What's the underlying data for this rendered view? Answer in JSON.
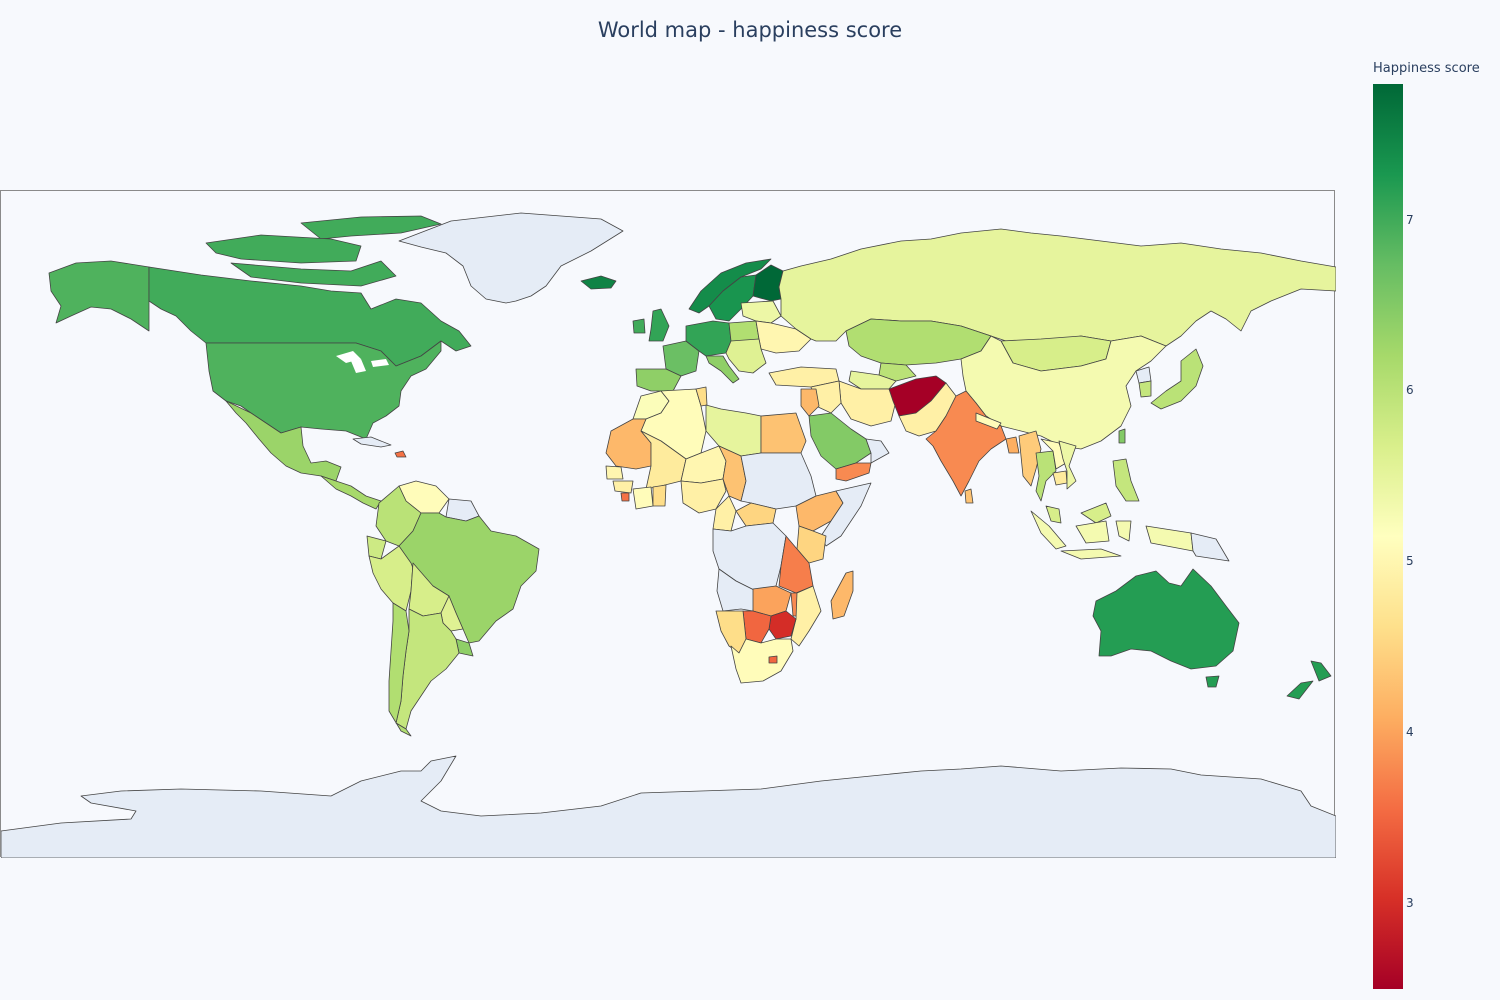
{
  "title": "World map - happiness score",
  "colorbar": {
    "title": "Happiness score",
    "range": [
      2.5,
      7.8
    ],
    "ticks": [
      "3",
      "4",
      "5",
      "6",
      "7"
    ],
    "colorscale": [
      "#a50026",
      "#d73027",
      "#f46d43",
      "#fdae61",
      "#fee08b",
      "#ffffbf",
      "#d9ef8b",
      "#a6d96a",
      "#66bd63",
      "#1a9850",
      "#006837"
    ]
  },
  "colors": {
    "no_data": "#e5ecf6",
    "land_stroke": "#444444",
    "frame_stroke": "#8a8a8a",
    "background": "#f7f9fd"
  },
  "regions": [
    {
      "name": "Greenland",
      "value": null
    },
    {
      "name": "Antarctica",
      "value": null
    },
    {
      "name": "Canada",
      "value": 7.0
    },
    {
      "name": "Alaska (United States)",
      "value": 6.9
    },
    {
      "name": "United States",
      "value": 6.9
    },
    {
      "name": "Mexico",
      "value": 6.3
    },
    {
      "name": "Central America",
      "value": 6.2
    },
    {
      "name": "Cuba",
      "value": null
    },
    {
      "name": "Haiti",
      "value": 3.6
    },
    {
      "name": "Venezuela",
      "value": 5.1
    },
    {
      "name": "Colombia",
      "value": 6.0
    },
    {
      "name": "Ecuador",
      "value": 5.8
    },
    {
      "name": "Peru",
      "value": 5.7
    },
    {
      "name": "Bolivia",
      "value": 5.7
    },
    {
      "name": "Brazil",
      "value": 6.3
    },
    {
      "name": "Guianas",
      "value": null
    },
    {
      "name": "Paraguay",
      "value": 5.6
    },
    {
      "name": "Argentina",
      "value": 5.9
    },
    {
      "name": "Chile",
      "value": 6.1
    },
    {
      "name": "Uruguay",
      "value": 6.4
    },
    {
      "name": "Iceland",
      "value": 7.5
    },
    {
      "name": "Norway",
      "value": 7.4
    },
    {
      "name": "Sweden",
      "value": 7.3
    },
    {
      "name": "Finland",
      "value": 7.8
    },
    {
      "name": "United Kingdom",
      "value": 7.1
    },
    {
      "name": "Ireland",
      "value": 7.0
    },
    {
      "name": "Iberia",
      "value": 6.4
    },
    {
      "name": "France",
      "value": 6.7
    },
    {
      "name": "Central Europe",
      "value": 7.1
    },
    {
      "name": "Italy",
      "value": 6.4
    },
    {
      "name": "Poland",
      "value": 6.1
    },
    {
      "name": "Eastern Europe",
      "value": 5.4
    },
    {
      "name": "Balkans",
      "value": 5.6
    },
    {
      "name": "Ukraine",
      "value": 5.0
    },
    {
      "name": "Turkey",
      "value": 4.9
    },
    {
      "name": "Russia",
      "value": 5.5
    },
    {
      "name": "Kazakhstan",
      "value": 6.1
    },
    {
      "name": "Uzbekistan",
      "value": 6.0
    },
    {
      "name": "Turkmenistan",
      "value": 5.5
    },
    {
      "name": "Mongolia",
      "value": 5.7
    },
    {
      "name": "China",
      "value": 5.3
    },
    {
      "name": "Iran",
      "value": 4.9
    },
    {
      "name": "Iraq",
      "value": 4.9
    },
    {
      "name": "Afghanistan",
      "value": 2.5
    },
    {
      "name": "Pakistan",
      "value": 4.9
    },
    {
      "name": "India",
      "value": 3.8
    },
    {
      "name": "Nepal",
      "value": 5.1
    },
    {
      "name": "Bangladesh",
      "value": 4.1
    },
    {
      "name": "Myanmar",
      "value": 4.4
    },
    {
      "name": "Thailand",
      "value": 6.0
    },
    {
      "name": "Laos",
      "value": 5.1
    },
    {
      "name": "Vietnam",
      "value": 5.4
    },
    {
      "name": "Cambodia",
      "value": 4.8
    },
    {
      "name": "Sri Lanka",
      "value": 4.3
    },
    {
      "name": "Japan",
      "value": 6.0
    },
    {
      "name": "South Korea",
      "value": 5.9
    },
    {
      "name": "North Korea",
      "value": null
    },
    {
      "name": "Taiwan",
      "value": 6.5
    },
    {
      "name": "Philippines",
      "value": 5.9
    },
    {
      "name": "Malaysia",
      "value": 5.7
    },
    {
      "name": "Indonesia",
      "value": 5.3
    },
    {
      "name": "Papua New Guinea",
      "value": null
    },
    {
      "name": "Australia",
      "value": 7.2
    },
    {
      "name": "New Zealand",
      "value": 7.2
    },
    {
      "name": "Saudi Arabia",
      "value": 6.5
    },
    {
      "name": "Yemen",
      "value": 3.8
    },
    {
      "name": "Oman",
      "value": null
    },
    {
      "name": "Syria & Jordan",
      "value": 4.2
    },
    {
      "name": "Egypt",
      "value": 4.3
    },
    {
      "name": "Libya",
      "value": 5.5
    },
    {
      "name": "Algeria",
      "value": 5.1
    },
    {
      "name": "Tunisia",
      "value": 4.6
    },
    {
      "name": "Morocco",
      "value": 5.2
    },
    {
      "name": "Western Sahara & Mauritania",
      "value": 4.2
    },
    {
      "name": "Mali",
      "value": 4.8
    },
    {
      "name": "Niger",
      "value": 5.0
    },
    {
      "name": "Chad",
      "value": 4.3
    },
    {
      "name": "Sudan",
      "value": null
    },
    {
      "name": "Ethiopia",
      "value": 4.2
    },
    {
      "name": "Somalia",
      "value": null
    },
    {
      "name": "Senegal",
      "value": 5.0
    },
    {
      "name": "Guinea",
      "value": 4.9
    },
    {
      "name": "Sierra Leone",
      "value": 3.6
    },
    {
      "name": "Ivory Coast",
      "value": 5.1
    },
    {
      "name": "Ghana",
      "value": 4.6
    },
    {
      "name": "Nigeria",
      "value": 4.9
    },
    {
      "name": "Cameroon",
      "value": 4.9
    },
    {
      "name": "Central African Republic",
      "value": 4.5
    },
    {
      "name": "DR Congo",
      "value": null
    },
    {
      "name": "Kenya",
      "value": 4.5
    },
    {
      "name": "Tanzania",
      "value": 3.7
    },
    {
      "name": "Zambia",
      "value": 4.0
    },
    {
      "name": "Malawi",
      "value": 3.8
    },
    {
      "name": "Mozambique",
      "value": 4.9
    },
    {
      "name": "Madagascar",
      "value": 4.2
    },
    {
      "name": "Angola",
      "value": null
    },
    {
      "name": "Namibia",
      "value": 4.6
    },
    {
      "name": "Botswana",
      "value": 3.5
    },
    {
      "name": "Zimbabwe",
      "value": 3.0
    },
    {
      "name": "South Africa",
      "value": 5.1
    },
    {
      "name": "Lesotho",
      "value": 3.5
    }
  ]
}
